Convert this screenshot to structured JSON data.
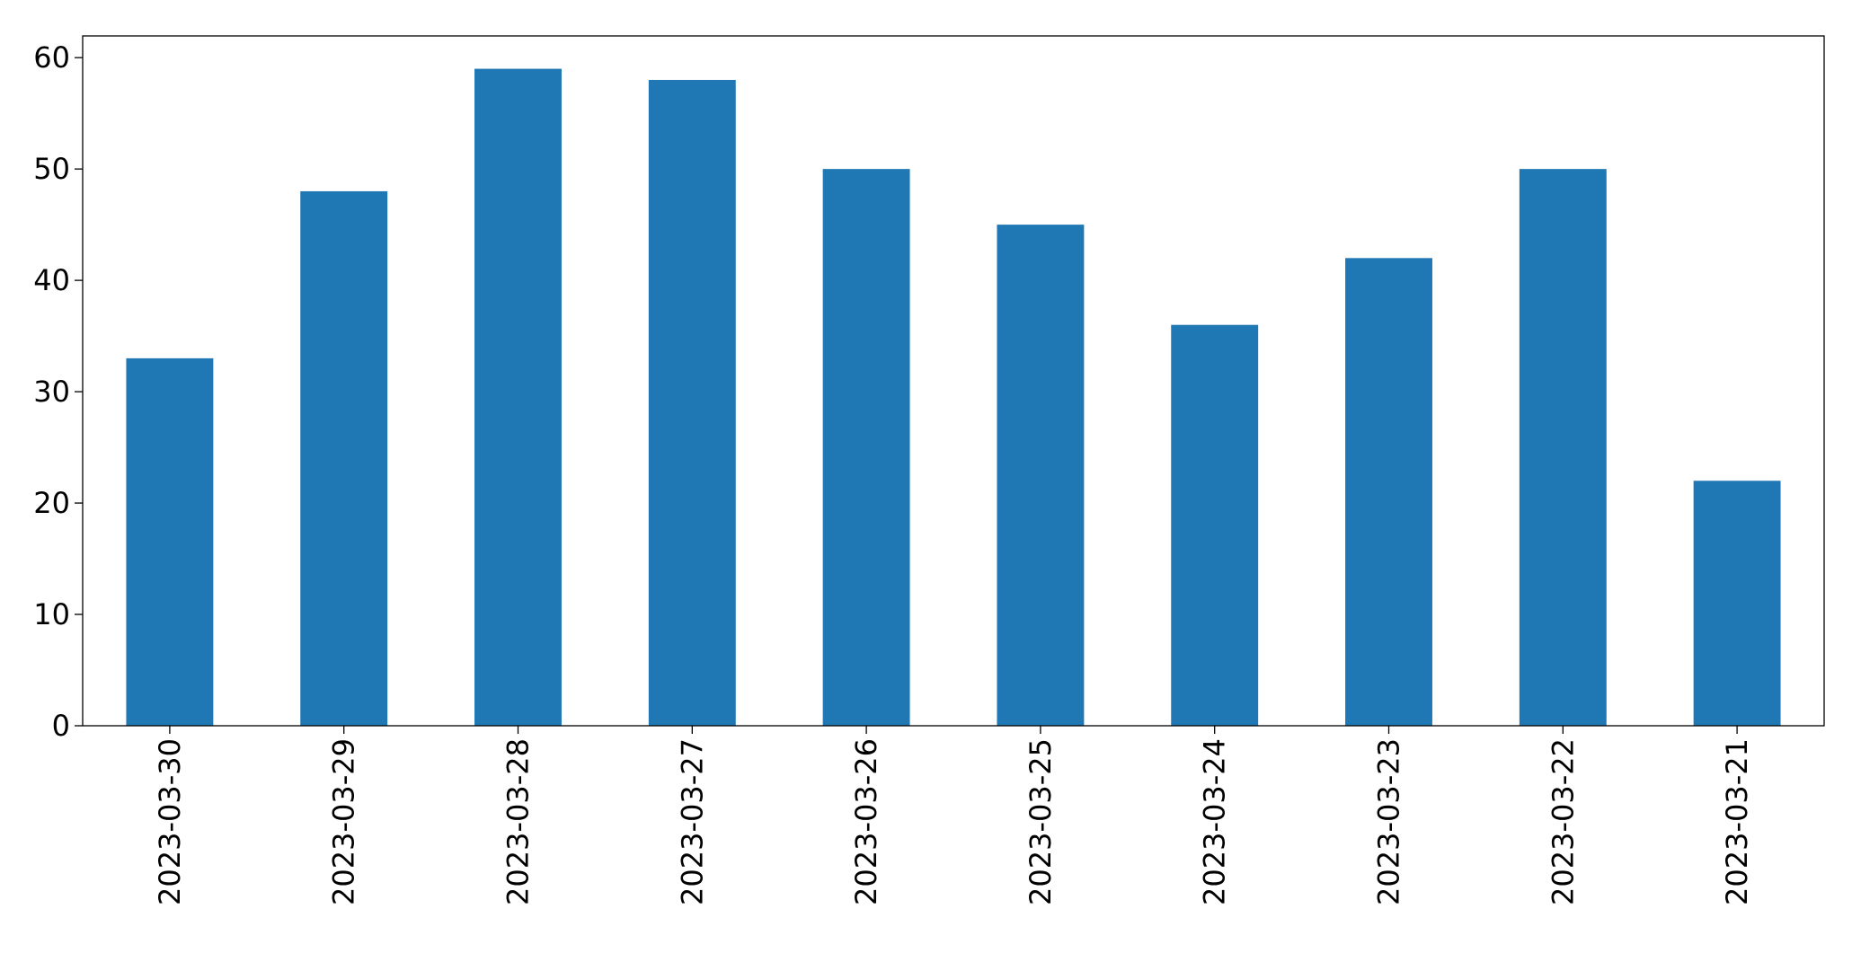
{
  "chart_data": {
    "type": "bar",
    "categories": [
      "2023-03-30",
      "2023-03-29",
      "2023-03-28",
      "2023-03-27",
      "2023-03-26",
      "2023-03-25",
      "2023-03-24",
      "2023-03-23",
      "2023-03-22",
      "2023-03-21"
    ],
    "values": [
      33,
      48,
      59,
      58,
      50,
      45,
      36,
      42,
      50,
      22
    ],
    "color": "#1f77b4",
    "ylim": [
      0,
      61.95
    ],
    "yticks": [
      0,
      10,
      20,
      30,
      40,
      50,
      60
    ],
    "grid": false
  }
}
